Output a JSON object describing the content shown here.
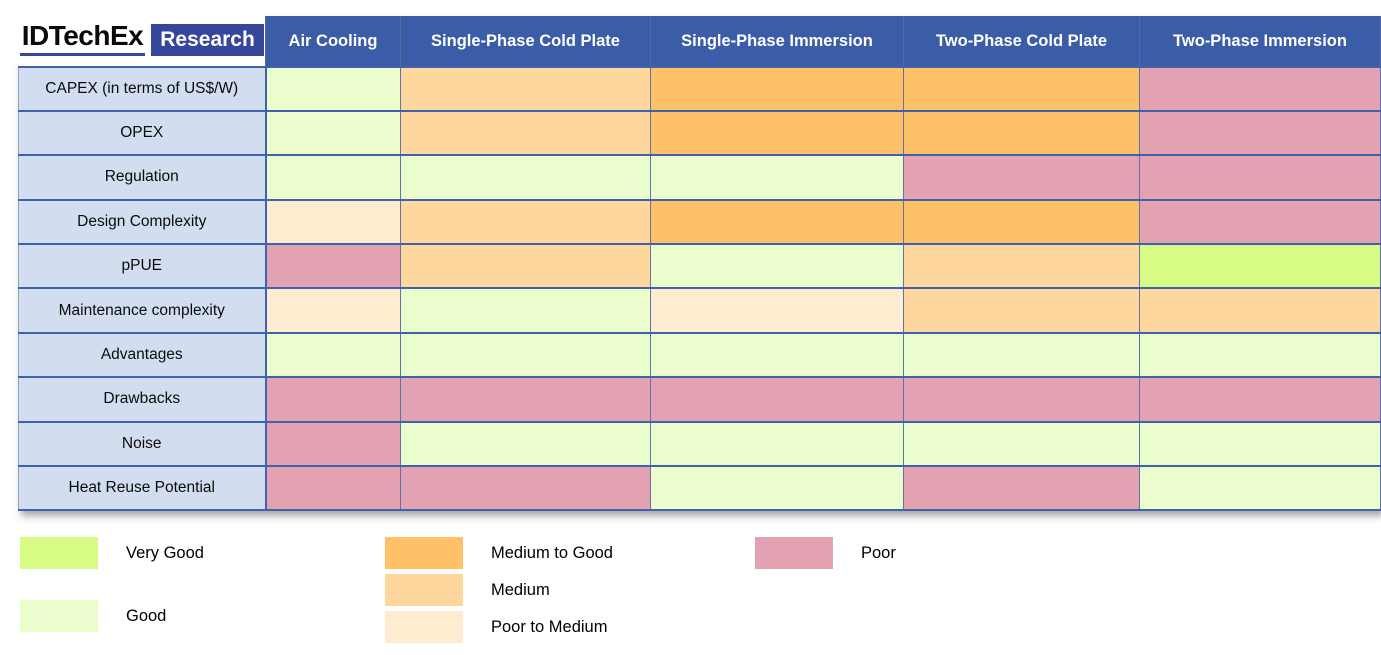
{
  "logo": {
    "brand": "IDTechEx",
    "suffix": "Research"
  },
  "theme": {
    "header_bg": "#3b5ca7",
    "label_bg": "#d2ddef",
    "border_strong": "#3e62ad",
    "logo_navy": "#35469b"
  },
  "table": {
    "columns": [
      "Air Cooling",
      "Single-Phase Cold Plate",
      "Single-Phase Immersion",
      "Two-Phase Cold Plate",
      "Two-Phase Immersion"
    ],
    "rows": [
      {
        "label": "CAPEX (in terms of US$/W)",
        "ratings": [
          "good",
          "medium",
          "medium_to_good",
          "medium_to_good",
          "poor"
        ]
      },
      {
        "label": "OPEX",
        "ratings": [
          "good",
          "medium",
          "medium_to_good",
          "medium_to_good",
          "poor"
        ]
      },
      {
        "label": "Regulation",
        "ratings": [
          "good",
          "good",
          "good",
          "poor",
          "poor"
        ]
      },
      {
        "label": "Design Complexity",
        "ratings": [
          "poor_to_medium",
          "medium",
          "medium_to_good",
          "medium_to_good",
          "poor"
        ]
      },
      {
        "label": "pPUE",
        "ratings": [
          "poor",
          "medium",
          "good",
          "medium",
          "very_good"
        ]
      },
      {
        "label": "Maintenance complexity",
        "ratings": [
          "poor_to_medium",
          "good",
          "poor_to_medium",
          "medium",
          "medium"
        ]
      },
      {
        "label": "Advantages",
        "ratings": [
          "good",
          "good",
          "good",
          "good",
          "good"
        ]
      },
      {
        "label": "Drawbacks",
        "ratings": [
          "poor",
          "poor",
          "poor",
          "poor",
          "poor"
        ]
      },
      {
        "label": "Noise",
        "ratings": [
          "poor",
          "good",
          "good",
          "good",
          "good"
        ]
      },
      {
        "label": "Heat Reuse Potential",
        "ratings": [
          "poor",
          "poor",
          "good",
          "poor",
          "good"
        ]
      }
    ]
  },
  "legend": {
    "colors": {
      "very_good": "#d7fb85",
      "good": "#ebfccd",
      "medium_to_good": "#fec167",
      "medium": "#fed79e",
      "poor_to_medium": "#fdeccf",
      "poor": "#e2a2b1"
    },
    "groups": [
      {
        "items": [
          {
            "key": "very_good",
            "label": "Very Good"
          },
          {
            "key": "good",
            "label": "Good"
          }
        ]
      },
      {
        "items": [
          {
            "key": "medium_to_good",
            "label": "Medium to Good"
          },
          {
            "key": "medium",
            "label": "Medium"
          },
          {
            "key": "poor_to_medium",
            "label": "Poor to Medium"
          }
        ]
      },
      {
        "items": [
          {
            "key": "poor",
            "label": "Poor"
          }
        ]
      }
    ]
  },
  "chart_data": {
    "type": "heatmap",
    "title": "",
    "columns": [
      "Air Cooling",
      "Single-Phase Cold Plate",
      "Single-Phase Immersion",
      "Two-Phase Cold Plate",
      "Two-Phase Immersion"
    ],
    "rows": [
      "CAPEX (in terms of US$/W)",
      "OPEX",
      "Regulation",
      "Design Complexity",
      "pPUE",
      "Maintenance complexity",
      "Advantages",
      "Drawbacks",
      "Noise",
      "Heat Reuse Potential"
    ],
    "values": [
      [
        "Good",
        "Medium",
        "Medium to Good",
        "Medium to Good",
        "Poor"
      ],
      [
        "Good",
        "Medium",
        "Medium to Good",
        "Medium to Good",
        "Poor"
      ],
      [
        "Good",
        "Good",
        "Good",
        "Poor",
        "Poor"
      ],
      [
        "Poor to Medium",
        "Medium",
        "Medium to Good",
        "Medium to Good",
        "Poor"
      ],
      [
        "Poor",
        "Medium",
        "Good",
        "Medium",
        "Very Good"
      ],
      [
        "Poor to Medium",
        "Good",
        "Poor to Medium",
        "Medium",
        "Medium"
      ],
      [
        "Good",
        "Good",
        "Good",
        "Good",
        "Good"
      ],
      [
        "Poor",
        "Poor",
        "Poor",
        "Poor",
        "Poor"
      ],
      [
        "Poor",
        "Good",
        "Good",
        "Good",
        "Good"
      ],
      [
        "Poor",
        "Poor",
        "Good",
        "Poor",
        "Good"
      ]
    ],
    "legend": {
      "Very Good": "#d7fb85",
      "Good": "#ebfccd",
      "Medium to Good": "#fec167",
      "Medium": "#fed79e",
      "Poor to Medium": "#fdeccf",
      "Poor": "#e2a2b1"
    },
    "legend_position": "bottom"
  }
}
